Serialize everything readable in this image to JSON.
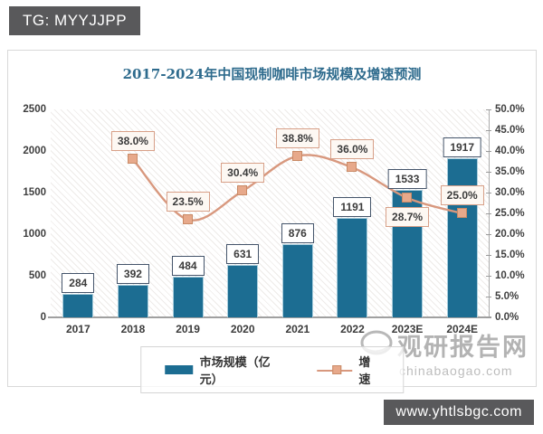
{
  "badges": {
    "top_left": "TG: MYYJJPP",
    "bottom_right": "www.yhtlsbgc.com"
  },
  "watermark": {
    "name": "观研报告网",
    "domain": "chinabaogao.com"
  },
  "colors": {
    "bar": "#1c6d92",
    "line": "#d8987e",
    "marker_fill": "#e7a98b",
    "marker_border": "#c98a66",
    "title": "#2e6b8d",
    "badge_bg": "#59595b"
  },
  "chart_data": {
    "type": "bar",
    "title": "2017-2024年中国现制咖啡市场规模及增速预测",
    "categories": [
      "2017",
      "2018",
      "2019",
      "2020",
      "2021",
      "2022",
      "2023E",
      "2024E"
    ],
    "series": [
      {
        "name": "市场规模（亿元）",
        "type": "bar",
        "axis": "left",
        "values": [
          284,
          392,
          484,
          631,
          876,
          1191,
          1533,
          1917
        ],
        "value_labels": [
          "284",
          "392",
          "484",
          "631",
          "876",
          "1191",
          "1533",
          "1917"
        ]
      },
      {
        "name": "增速",
        "type": "line",
        "axis": "right",
        "values": [
          null,
          38.0,
          23.5,
          30.4,
          38.8,
          36.0,
          28.7,
          25.0
        ],
        "value_labels": [
          null,
          "38.0%",
          "23.5%",
          "30.4%",
          "38.8%",
          "36.0%",
          "28.7%",
          "25.0%"
        ],
        "label_positions": [
          null,
          "above",
          "above",
          "above",
          "above",
          "above",
          "below",
          "above"
        ]
      }
    ],
    "left_axis": {
      "min": 0,
      "max": 2500,
      "step": 500,
      "ticks": [
        "0",
        "500",
        "1000",
        "1500",
        "2000",
        "2500"
      ]
    },
    "right_axis": {
      "min": 0,
      "max": 50,
      "step": 5,
      "ticks": [
        "0.0%",
        "5.0%",
        "10.0%",
        "15.0%",
        "20.0%",
        "25.0%",
        "30.0%",
        "35.0%",
        "40.0%",
        "45.0%",
        "50.0%"
      ]
    },
    "legend_position": "bottom",
    "grid": false
  }
}
